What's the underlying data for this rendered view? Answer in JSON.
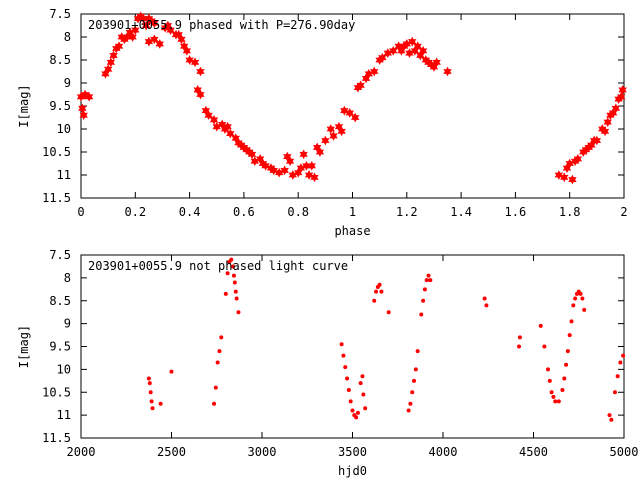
{
  "chart_data": [
    {
      "type": "scatter",
      "title": "203901+0055.9 phased with P=276.90day",
      "xlabel": "phase",
      "ylabel": "I[mag]",
      "xlim": [
        0,
        2
      ],
      "ylim": [
        11.5,
        7.5
      ],
      "y_inverted": true,
      "grid": false,
      "legend": "none",
      "color": "#ff0000",
      "marker": "star",
      "xticks": [
        "0",
        "0.2",
        "0.4",
        "0.6",
        "0.8",
        "1",
        "1.2",
        "1.4",
        "1.6",
        "1.8",
        "2"
      ],
      "yticks": [
        "7.5",
        "8",
        "8.5",
        "9",
        "9.5",
        "10",
        "10.5",
        "11",
        "11.5"
      ],
      "points": [
        [
          0.0,
          9.3
        ],
        [
          0.005,
          9.55
        ],
        [
          0.01,
          9.7
        ],
        [
          0.015,
          9.25
        ],
        [
          0.03,
          9.3
        ],
        [
          0.09,
          8.8
        ],
        [
          0.1,
          8.7
        ],
        [
          0.11,
          8.55
        ],
        [
          0.12,
          8.4
        ],
        [
          0.13,
          8.25
        ],
        [
          0.14,
          8.2
        ],
        [
          0.15,
          8.0
        ],
        [
          0.16,
          8.05
        ],
        [
          0.17,
          8.0
        ],
        [
          0.18,
          7.9
        ],
        [
          0.19,
          8.0
        ],
        [
          0.2,
          7.85
        ],
        [
          0.21,
          7.6
        ],
        [
          0.22,
          7.55
        ],
        [
          0.23,
          7.6
        ],
        [
          0.24,
          7.75
        ],
        [
          0.25,
          7.6
        ],
        [
          0.26,
          7.65
        ],
        [
          0.27,
          7.7
        ],
        [
          0.25,
          8.1
        ],
        [
          0.27,
          8.05
        ],
        [
          0.29,
          8.15
        ],
        [
          0.31,
          7.8
        ],
        [
          0.32,
          7.75
        ],
        [
          0.33,
          7.85
        ],
        [
          0.35,
          7.95
        ],
        [
          0.36,
          7.95
        ],
        [
          0.37,
          8.05
        ],
        [
          0.38,
          8.2
        ],
        [
          0.39,
          8.3
        ],
        [
          0.4,
          8.5
        ],
        [
          0.42,
          8.55
        ],
        [
          0.44,
          8.75
        ],
        [
          0.43,
          9.15
        ],
        [
          0.44,
          9.25
        ],
        [
          0.46,
          9.6
        ],
        [
          0.47,
          9.7
        ],
        [
          0.49,
          9.8
        ],
        [
          0.5,
          9.95
        ],
        [
          0.52,
          9.9
        ],
        [
          0.53,
          10.0
        ],
        [
          0.54,
          9.95
        ],
        [
          0.55,
          10.1
        ],
        [
          0.57,
          10.2
        ],
        [
          0.58,
          10.3
        ],
        [
          0.59,
          10.35
        ],
        [
          0.6,
          10.4
        ],
        [
          0.61,
          10.45
        ],
        [
          0.62,
          10.5
        ],
        [
          0.63,
          10.55
        ],
        [
          0.64,
          10.7
        ],
        [
          0.66,
          10.65
        ],
        [
          0.67,
          10.75
        ],
        [
          0.68,
          10.8
        ],
        [
          0.7,
          10.85
        ],
        [
          0.71,
          10.9
        ],
        [
          0.73,
          10.95
        ],
        [
          0.75,
          10.9
        ],
        [
          0.76,
          10.6
        ],
        [
          0.77,
          10.7
        ],
        [
          0.78,
          11.0
        ],
        [
          0.8,
          10.95
        ],
        [
          0.81,
          10.85
        ],
        [
          0.82,
          10.55
        ],
        [
          0.83,
          10.8
        ],
        [
          0.84,
          11.0
        ],
        [
          0.86,
          11.05
        ],
        [
          0.85,
          10.8
        ],
        [
          0.87,
          10.4
        ],
        [
          0.88,
          10.5
        ],
        [
          0.9,
          10.25
        ],
        [
          0.92,
          10.0
        ],
        [
          0.93,
          10.15
        ],
        [
          0.95,
          9.95
        ],
        [
          0.96,
          10.05
        ],
        [
          0.97,
          9.6
        ],
        [
          0.99,
          9.65
        ],
        [
          1.01,
          9.75
        ],
        [
          1.02,
          9.1
        ],
        [
          1.03,
          9.05
        ],
        [
          1.05,
          8.9
        ],
        [
          1.06,
          8.8
        ],
        [
          1.08,
          8.75
        ],
        [
          1.1,
          8.5
        ],
        [
          1.11,
          8.45
        ],
        [
          1.13,
          8.35
        ],
        [
          1.15,
          8.3
        ],
        [
          1.17,
          8.2
        ],
        [
          1.18,
          8.3
        ],
        [
          1.19,
          8.2
        ],
        [
          1.2,
          8.15
        ],
        [
          1.21,
          8.35
        ],
        [
          1.22,
          8.1
        ],
        [
          1.23,
          8.3
        ],
        [
          1.24,
          8.2
        ],
        [
          1.25,
          8.4
        ],
        [
          1.26,
          8.3
        ],
        [
          1.27,
          8.5
        ],
        [
          1.28,
          8.55
        ],
        [
          1.29,
          8.6
        ],
        [
          1.3,
          8.65
        ],
        [
          1.31,
          8.55
        ],
        [
          1.35,
          8.75
        ],
        [
          1.76,
          11.0
        ],
        [
          1.78,
          11.05
        ],
        [
          1.79,
          10.85
        ],
        [
          1.8,
          10.75
        ],
        [
          1.81,
          11.1
        ],
        [
          1.82,
          10.7
        ],
        [
          1.83,
          10.65
        ],
        [
          1.85,
          10.5
        ],
        [
          1.86,
          10.45
        ],
        [
          1.87,
          10.4
        ],
        [
          1.88,
          10.35
        ],
        [
          1.89,
          10.25
        ],
        [
          1.9,
          10.25
        ],
        [
          1.92,
          10.0
        ],
        [
          1.93,
          10.05
        ],
        [
          1.94,
          9.85
        ],
        [
          1.95,
          9.7
        ],
        [
          1.96,
          9.65
        ],
        [
          1.97,
          9.55
        ],
        [
          1.98,
          9.35
        ],
        [
          1.99,
          9.3
        ],
        [
          1.995,
          9.15
        ]
      ]
    },
    {
      "type": "scatter",
      "title": "203901+0055.9 not phased light curve",
      "xlabel": "hjd0",
      "ylabel": "I[mag]",
      "xlim": [
        2000,
        5000
      ],
      "ylim": [
        11.5,
        7.5
      ],
      "y_inverted": true,
      "grid": false,
      "legend": "none",
      "color": "#ff0000",
      "marker": "dot",
      "xticks": [
        "2000",
        "2500",
        "3000",
        "3500",
        "4000",
        "4500",
        "5000"
      ],
      "yticks": [
        "7.5",
        "8",
        "8.5",
        "9",
        "9.5",
        "10",
        "10.5",
        "11",
        "11.5"
      ],
      "points": [
        [
          2375,
          10.2
        ],
        [
          2380,
          10.3
        ],
        [
          2385,
          10.5
        ],
        [
          2390,
          10.7
        ],
        [
          2395,
          10.85
        ],
        [
          2440,
          10.75
        ],
        [
          2500,
          10.05
        ],
        [
          2735,
          10.75
        ],
        [
          2745,
          10.4
        ],
        [
          2755,
          9.85
        ],
        [
          2765,
          9.6
        ],
        [
          2775,
          9.3
        ],
        [
          2800,
          8.35
        ],
        [
          2810,
          7.9
        ],
        [
          2820,
          7.65
        ],
        [
          2830,
          7.6
        ],
        [
          2840,
          7.75
        ],
        [
          2845,
          7.95
        ],
        [
          2850,
          8.1
        ],
        [
          2855,
          8.3
        ],
        [
          2860,
          8.45
        ],
        [
          2870,
          8.75
        ],
        [
          3440,
          9.45
        ],
        [
          3450,
          9.7
        ],
        [
          3460,
          9.95
        ],
        [
          3470,
          10.2
        ],
        [
          3480,
          10.45
        ],
        [
          3490,
          10.7
        ],
        [
          3500,
          10.9
        ],
        [
          3510,
          11.0
        ],
        [
          3520,
          11.05
        ],
        [
          3530,
          10.95
        ],
        [
          3545,
          10.3
        ],
        [
          3555,
          10.15
        ],
        [
          3560,
          10.55
        ],
        [
          3570,
          10.85
        ],
        [
          3620,
          8.5
        ],
        [
          3630,
          8.3
        ],
        [
          3640,
          8.2
        ],
        [
          3650,
          8.15
        ],
        [
          3660,
          8.3
        ],
        [
          3700,
          8.75
        ],
        [
          3810,
          10.9
        ],
        [
          3820,
          10.75
        ],
        [
          3830,
          10.5
        ],
        [
          3840,
          10.25
        ],
        [
          3850,
          10.0
        ],
        [
          3860,
          9.6
        ],
        [
          3880,
          8.8
        ],
        [
          3890,
          8.5
        ],
        [
          3900,
          8.25
        ],
        [
          3910,
          8.05
        ],
        [
          3920,
          7.95
        ],
        [
          3930,
          8.05
        ],
        [
          4230,
          8.45
        ],
        [
          4240,
          8.6
        ],
        [
          4420,
          9.5
        ],
        [
          4425,
          9.3
        ],
        [
          4540,
          9.05
        ],
        [
          4560,
          9.5
        ],
        [
          4580,
          10.0
        ],
        [
          4590,
          10.25
        ],
        [
          4600,
          10.5
        ],
        [
          4610,
          10.6
        ],
        [
          4620,
          10.7
        ],
        [
          4640,
          10.7
        ],
        [
          4660,
          10.45
        ],
        [
          4670,
          10.2
        ],
        [
          4680,
          9.9
        ],
        [
          4690,
          9.6
        ],
        [
          4700,
          9.25
        ],
        [
          4710,
          8.95
        ],
        [
          4720,
          8.6
        ],
        [
          4730,
          8.45
        ],
        [
          4740,
          8.35
        ],
        [
          4750,
          8.3
        ],
        [
          4760,
          8.35
        ],
        [
          4770,
          8.45
        ],
        [
          4780,
          8.7
        ],
        [
          4920,
          11.0
        ],
        [
          4930,
          11.1
        ],
        [
          4950,
          10.5
        ],
        [
          4965,
          10.15
        ],
        [
          4980,
          9.85
        ],
        [
          4995,
          9.7
        ]
      ]
    }
  ]
}
